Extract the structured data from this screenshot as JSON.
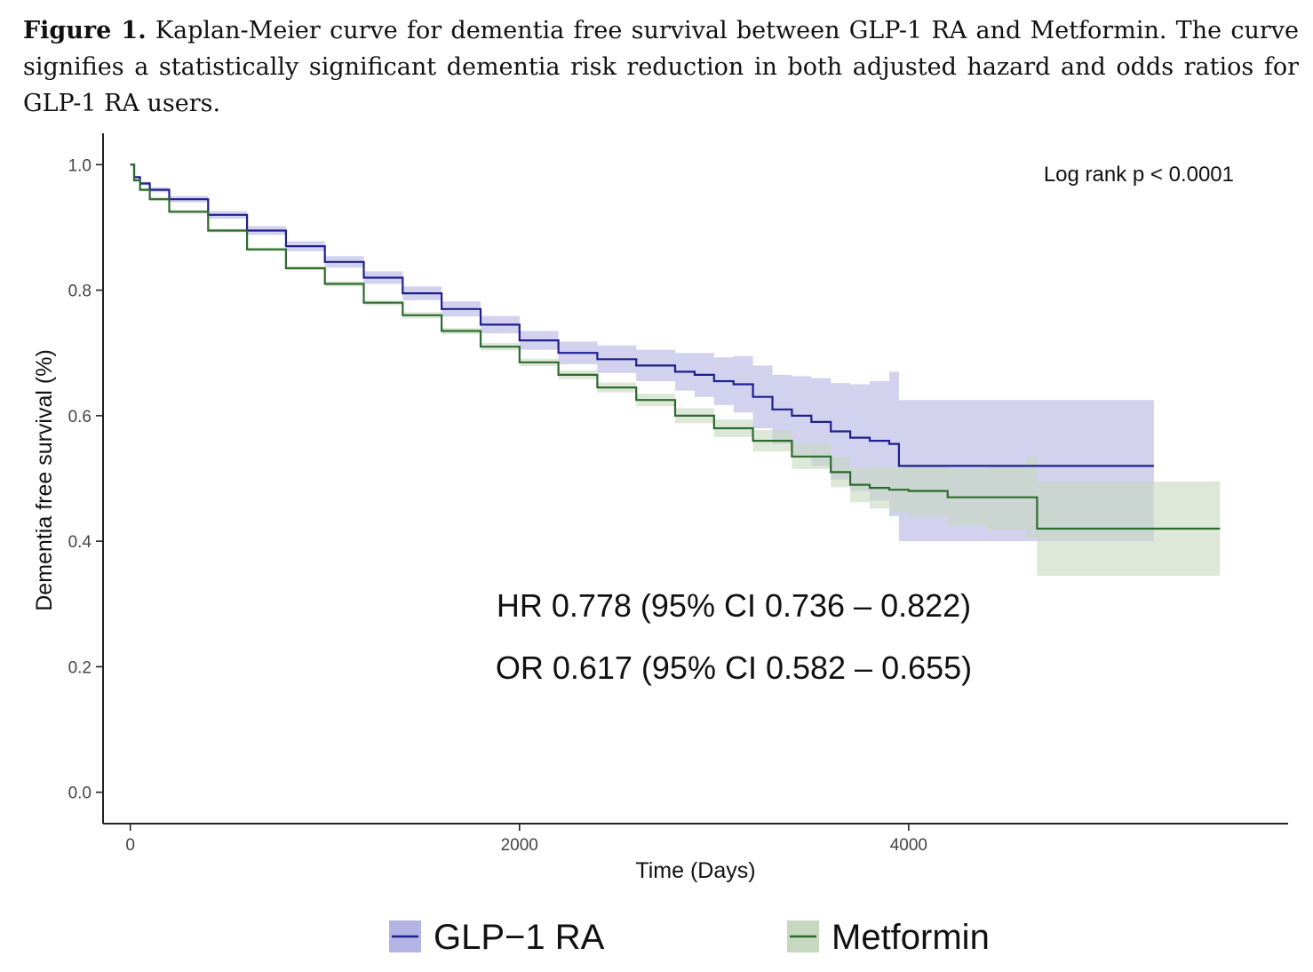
{
  "caption": {
    "label": "Figure 1.",
    "text": "Kaplan-Meier curve for dementia free survival between GLP-1 RA and Metformin. The curve signifies a statistically significant dementia risk reduction in both adjusted hazard and odds ratios for GLP-1 RA users."
  },
  "chart_data": {
    "type": "line",
    "subtype": "kaplan-meier step curve with confidence bands",
    "xlabel": "Time (Days)",
    "ylabel": "Dementia free survival (%)",
    "xlim": [
      -140,
      5950
    ],
    "ylim": [
      -0.05,
      1.05
    ],
    "xticks": [
      0,
      2000,
      4000
    ],
    "yticks": [
      0.0,
      0.2,
      0.4,
      0.6,
      0.8,
      1.0
    ],
    "ytick_labels": [
      "0.0",
      "0.2",
      "0.4",
      "0.6",
      "0.8",
      "1.0"
    ],
    "grid": false,
    "legend_position": "bottom",
    "annotations": {
      "logrank": "Log rank p < 0.0001",
      "hr": "HR 0.778 (95% CI 0.736 – 0.822)",
      "or": "OR 0.617 (95% CI 0.582 – 0.655)"
    },
    "series": [
      {
        "name": "GLP−1 RA",
        "line_color": "#1f1f8f",
        "band_color": "#b4b4e4",
        "x": [
          0,
          20,
          50,
          100,
          200,
          400,
          600,
          800,
          1000,
          1200,
          1400,
          1600,
          1800,
          2000,
          2200,
          2400,
          2600,
          2800,
          2900,
          3000,
          3100,
          3200,
          3300,
          3400,
          3500,
          3600,
          3700,
          3800,
          3900,
          3950,
          4400,
          4800,
          5260
        ],
        "y": [
          1.0,
          0.98,
          0.97,
          0.96,
          0.945,
          0.92,
          0.895,
          0.87,
          0.845,
          0.82,
          0.795,
          0.77,
          0.745,
          0.72,
          0.7,
          0.69,
          0.68,
          0.67,
          0.665,
          0.655,
          0.65,
          0.63,
          0.61,
          0.6,
          0.59,
          0.575,
          0.565,
          0.56,
          0.555,
          0.52,
          0.52,
          0.52,
          0.52
        ],
        "lower": [
          1.0,
          0.978,
          0.967,
          0.956,
          0.94,
          0.914,
          0.888,
          0.862,
          0.836,
          0.81,
          0.784,
          0.758,
          0.731,
          0.705,
          0.682,
          0.668,
          0.655,
          0.64,
          0.63,
          0.617,
          0.605,
          0.58,
          0.555,
          0.537,
          0.52,
          0.498,
          0.48,
          0.465,
          0.44,
          0.4,
          0.4,
          0.4,
          0.4
        ],
        "upper": [
          1.0,
          0.982,
          0.973,
          0.964,
          0.95,
          0.926,
          0.902,
          0.878,
          0.854,
          0.83,
          0.806,
          0.782,
          0.759,
          0.735,
          0.718,
          0.712,
          0.705,
          0.7,
          0.7,
          0.693,
          0.695,
          0.68,
          0.665,
          0.663,
          0.66,
          0.652,
          0.65,
          0.655,
          0.67,
          0.625,
          0.625,
          0.625,
          0.625
        ]
      },
      {
        "name": "Metformin",
        "line_color": "#2d6a2d",
        "band_color": "#c6d9c0",
        "x": [
          0,
          20,
          50,
          100,
          200,
          400,
          600,
          800,
          1000,
          1200,
          1400,
          1600,
          1800,
          2000,
          2200,
          2400,
          2600,
          2800,
          3000,
          3200,
          3400,
          3600,
          3700,
          3800,
          3900,
          4000,
          4200,
          4400,
          4600,
          4660,
          5000,
          5600
        ],
        "y": [
          1.0,
          0.975,
          0.96,
          0.945,
          0.925,
          0.895,
          0.865,
          0.835,
          0.81,
          0.78,
          0.76,
          0.735,
          0.71,
          0.685,
          0.665,
          0.645,
          0.625,
          0.6,
          0.58,
          0.56,
          0.535,
          0.51,
          0.49,
          0.485,
          0.482,
          0.48,
          0.47,
          0.47,
          0.47,
          0.42,
          0.42,
          0.42
        ],
        "lower": [
          1.0,
          0.973,
          0.957,
          0.942,
          0.922,
          0.892,
          0.862,
          0.832,
          0.806,
          0.776,
          0.755,
          0.73,
          0.704,
          0.679,
          0.658,
          0.637,
          0.615,
          0.588,
          0.566,
          0.543,
          0.515,
          0.486,
          0.462,
          0.452,
          0.445,
          0.44,
          0.425,
          0.418,
          0.405,
          0.345,
          0.345,
          0.345
        ],
        "upper": [
          1.0,
          0.977,
          0.963,
          0.948,
          0.928,
          0.898,
          0.868,
          0.838,
          0.814,
          0.784,
          0.765,
          0.74,
          0.716,
          0.691,
          0.672,
          0.653,
          0.635,
          0.612,
          0.594,
          0.577,
          0.555,
          0.534,
          0.518,
          0.518,
          0.519,
          0.52,
          0.515,
          0.522,
          0.535,
          0.495,
          0.495,
          0.495
        ]
      }
    ]
  }
}
